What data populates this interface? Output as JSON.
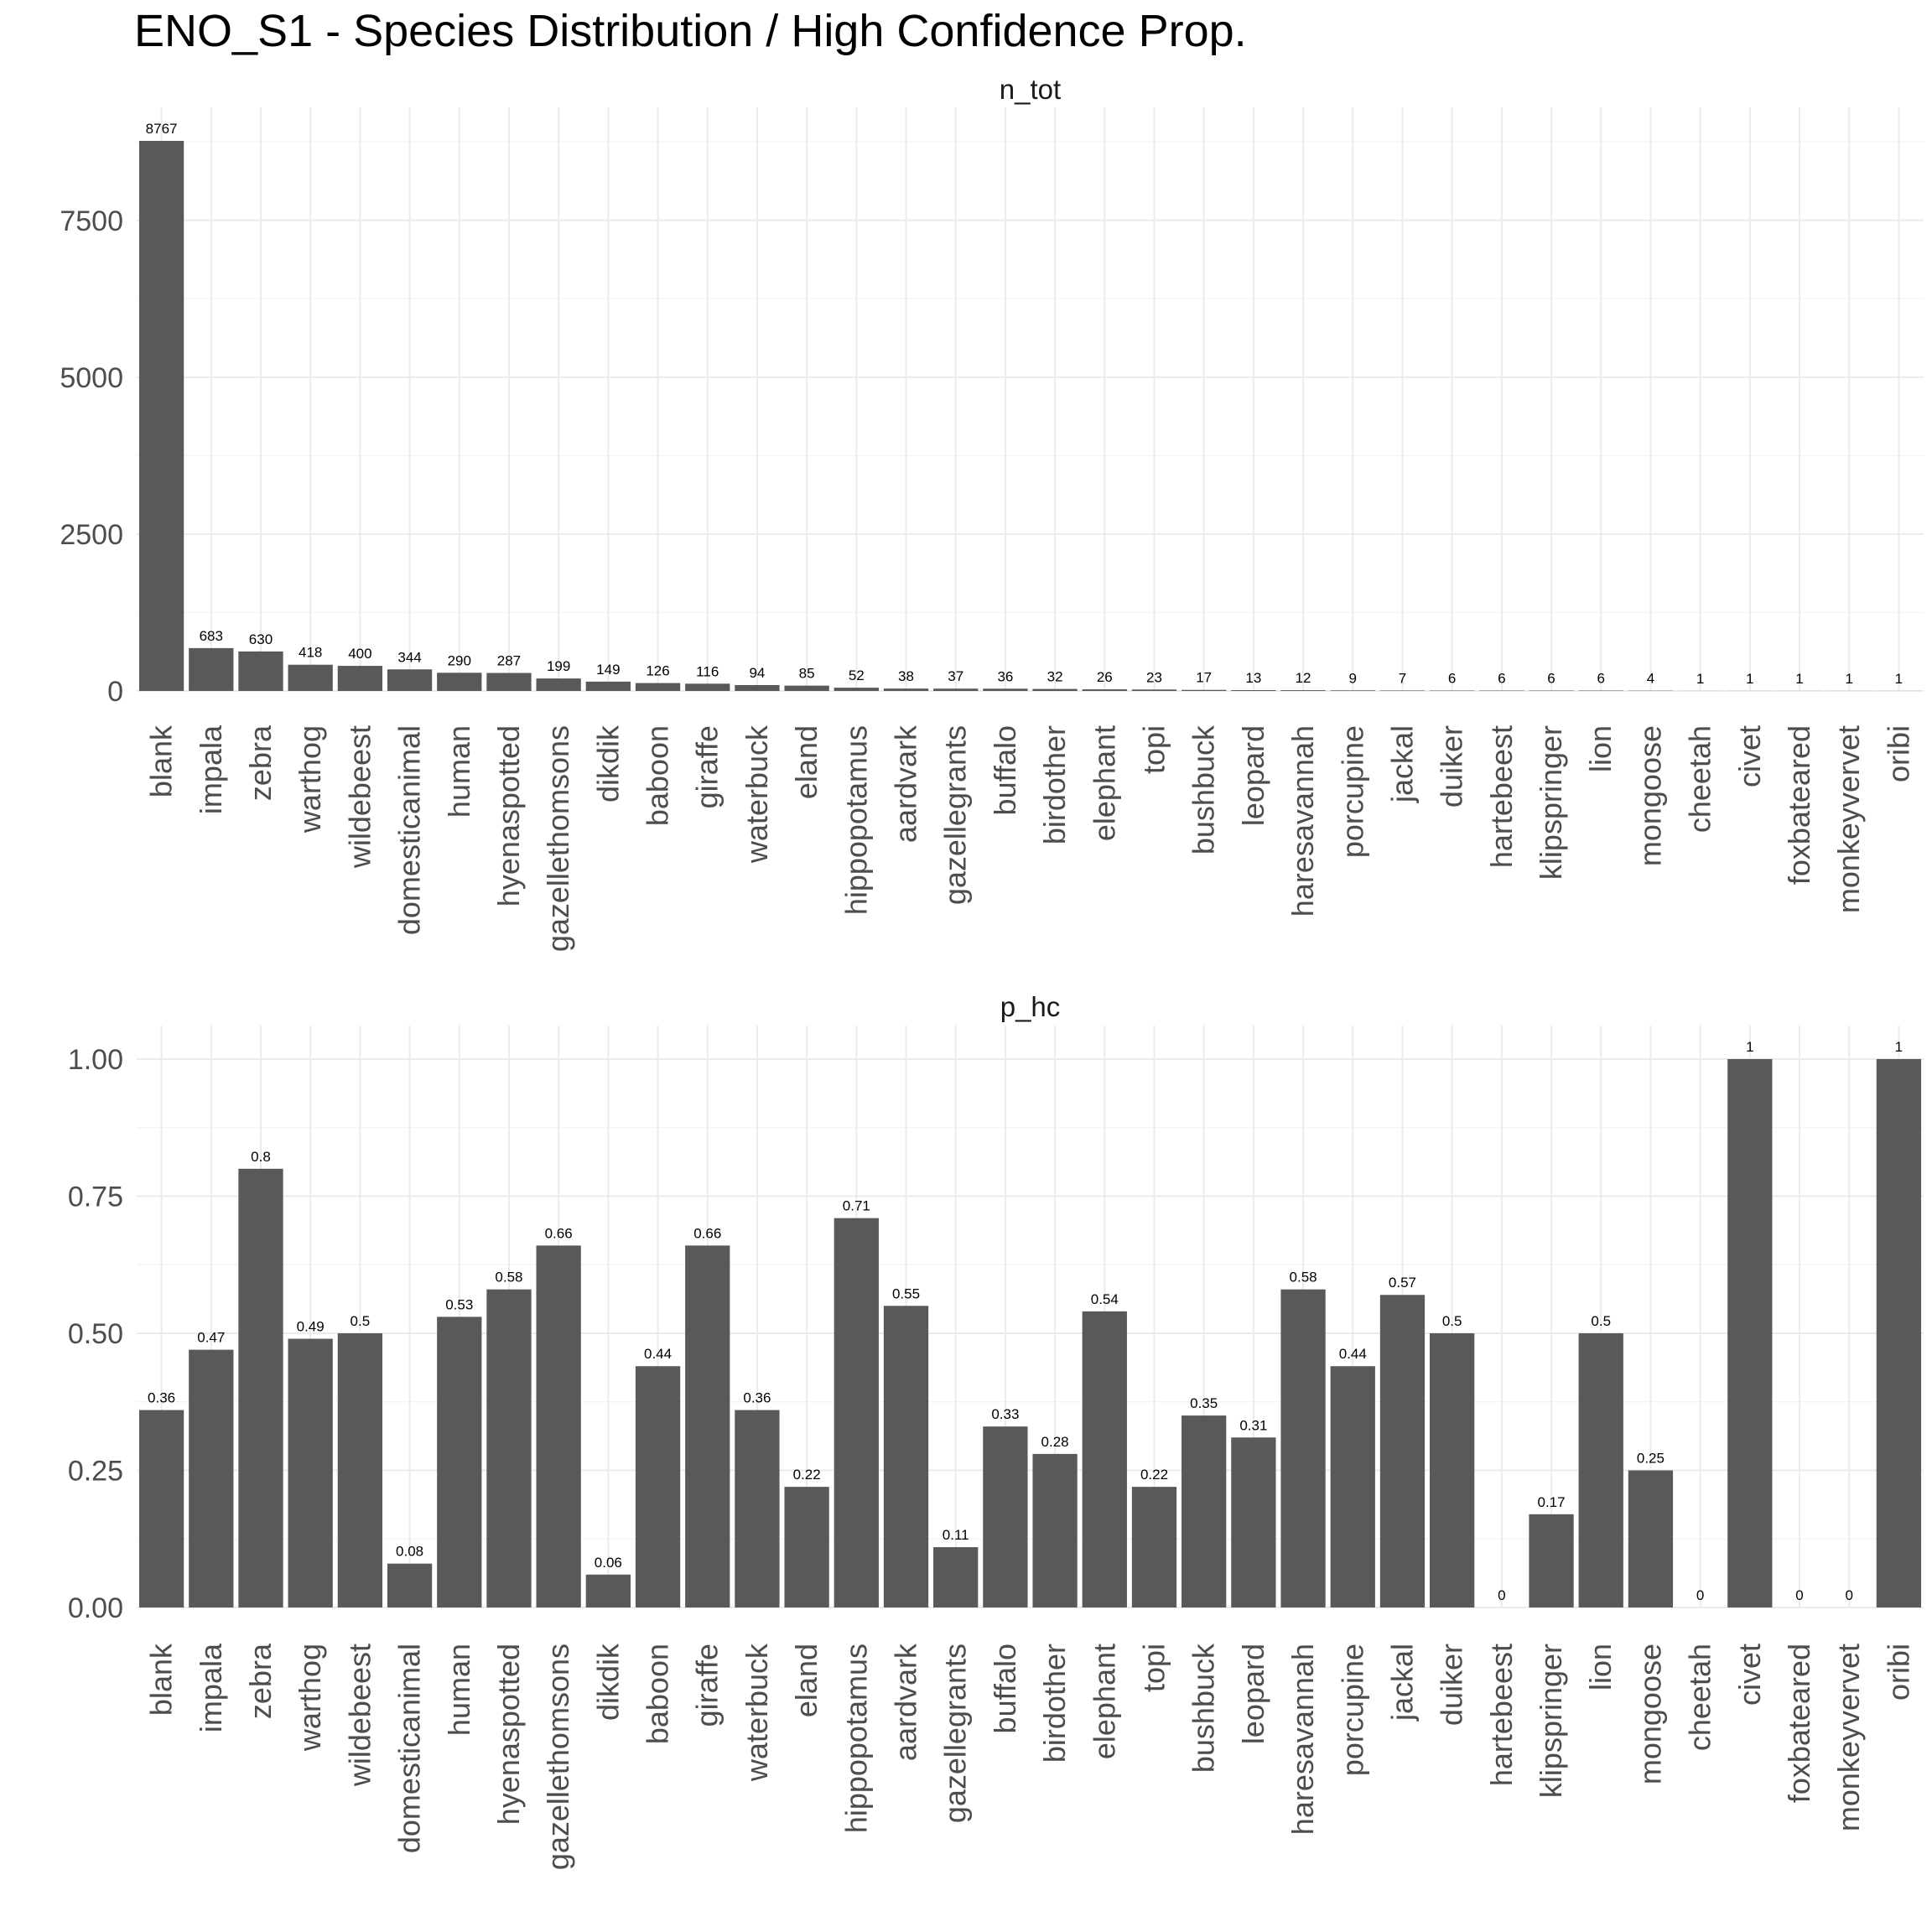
{
  "title": "ENO_S1 - Species Distribution / High Confidence Prop.",
  "colors": {
    "bar": "#595959",
    "grid_major": "#ebebeb",
    "grid_minor": "#f5f5f5",
    "background": "#ffffff"
  },
  "chart_data": [
    {
      "type": "bar",
      "title": "n_tot",
      "categories": [
        "blank",
        "impala",
        "zebra",
        "warthog",
        "wildebeest",
        "domesticanimal",
        "human",
        "hyenaspotted",
        "gazellethomsons",
        "dikdik",
        "baboon",
        "giraffe",
        "waterbuck",
        "eland",
        "hippopotamus",
        "aardvark",
        "gazellegrants",
        "buffalo",
        "birdother",
        "elephant",
        "topi",
        "bushbuck",
        "leopard",
        "haresavannah",
        "porcupine",
        "jackal",
        "duiker",
        "hartebeest",
        "klipspringer",
        "lion",
        "mongoose",
        "cheetah",
        "civet",
        "foxbateared",
        "monkeyvervet",
        "oribi"
      ],
      "values": [
        8767,
        683,
        630,
        418,
        400,
        344,
        290,
        287,
        199,
        149,
        126,
        116,
        94,
        85,
        52,
        38,
        37,
        36,
        32,
        26,
        23,
        17,
        13,
        12,
        9,
        7,
        6,
        6,
        6,
        6,
        4,
        1,
        1,
        1,
        1,
        1
      ],
      "labels": [
        "8767",
        "683",
        "630",
        "418",
        "400",
        "344",
        "290",
        "287",
        "199",
        "149",
        "126",
        "116",
        "94",
        "85",
        "52",
        "38",
        "37",
        "36",
        "32",
        "26",
        "23",
        "17",
        "13",
        "12",
        "9",
        "7",
        "6",
        "6",
        "6",
        "6",
        "4",
        "1",
        "1",
        "1",
        "1",
        "1"
      ],
      "yticks": [
        0,
        2500,
        5000,
        7500
      ],
      "ytick_labels": [
        "0",
        "2500",
        "5000",
        "7500"
      ],
      "ylim": [
        0,
        8767
      ],
      "grid": true
    },
    {
      "type": "bar",
      "title": "p_hc",
      "categories": [
        "blank",
        "impala",
        "zebra",
        "warthog",
        "wildebeest",
        "domesticanimal",
        "human",
        "hyenaspotted",
        "gazellethomsons",
        "dikdik",
        "baboon",
        "giraffe",
        "waterbuck",
        "eland",
        "hippopotamus",
        "aardvark",
        "gazellegrants",
        "buffalo",
        "birdother",
        "elephant",
        "topi",
        "bushbuck",
        "leopard",
        "haresavannah",
        "porcupine",
        "jackal",
        "duiker",
        "hartebeest",
        "klipspringer",
        "lion",
        "mongoose",
        "cheetah",
        "civet",
        "foxbateared",
        "monkeyvervet",
        "oribi"
      ],
      "values": [
        0.36,
        0.47,
        0.8,
        0.49,
        0.5,
        0.08,
        0.53,
        0.58,
        0.66,
        0.06,
        0.44,
        0.66,
        0.36,
        0.22,
        0.71,
        0.55,
        0.11,
        0.33,
        0.28,
        0.54,
        0.22,
        0.35,
        0.31,
        0.58,
        0.44,
        0.57,
        0.5,
        0,
        0.17,
        0.5,
        0.25,
        0,
        1,
        0,
        0,
        1
      ],
      "labels": [
        "0.36",
        "0.47",
        "0.8",
        "0.49",
        "0.5",
        "0.08",
        "0.53",
        "0.58",
        "0.66",
        "0.06",
        "0.44",
        "0.66",
        "0.36",
        "0.22",
        "0.71",
        "0.55",
        "0.11",
        "0.33",
        "0.28",
        "0.54",
        "0.22",
        "0.35",
        "0.31",
        "0.58",
        "0.44",
        "0.57",
        "0.5",
        "0",
        "0.17",
        "0.5",
        "0.25",
        "0",
        "1",
        "0",
        "0",
        "1"
      ],
      "yticks": [
        0,
        0.25,
        0.5,
        0.75,
        1.0
      ],
      "ytick_labels": [
        "0.00",
        "0.25",
        "0.50",
        "0.75",
        "1.00"
      ],
      "ylim": [
        0,
        1
      ],
      "grid": true
    }
  ]
}
